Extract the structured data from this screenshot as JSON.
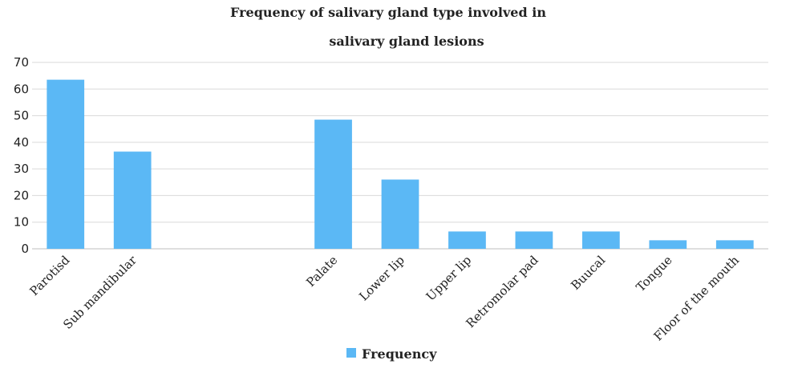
{
  "chart_data": {
    "type": "bar",
    "title_lines": [
      "Frequency of salivary gland type involved in",
      "salivary gland lesions"
    ],
    "categories": [
      "Parotisd",
      "Sub mandibular",
      "",
      "",
      "Palate",
      "Lower lip",
      "Upper lip",
      "Retromolar pad",
      "Buucal",
      "Tongue",
      "Floor of the mouth"
    ],
    "series": [
      {
        "name": "Frequency",
        "values": [
          63.5,
          36.5,
          0,
          0,
          48.5,
          26,
          6.5,
          6.5,
          6.5,
          3.2,
          3.2
        ]
      }
    ],
    "yticks": [
      "0",
      "10",
      "20",
      "30",
      "40",
      "50",
      "60",
      "70"
    ],
    "ylim": [
      0,
      70
    ],
    "grid": true,
    "legend_position": "bottom",
    "bar_color": "#5bb8f5"
  }
}
